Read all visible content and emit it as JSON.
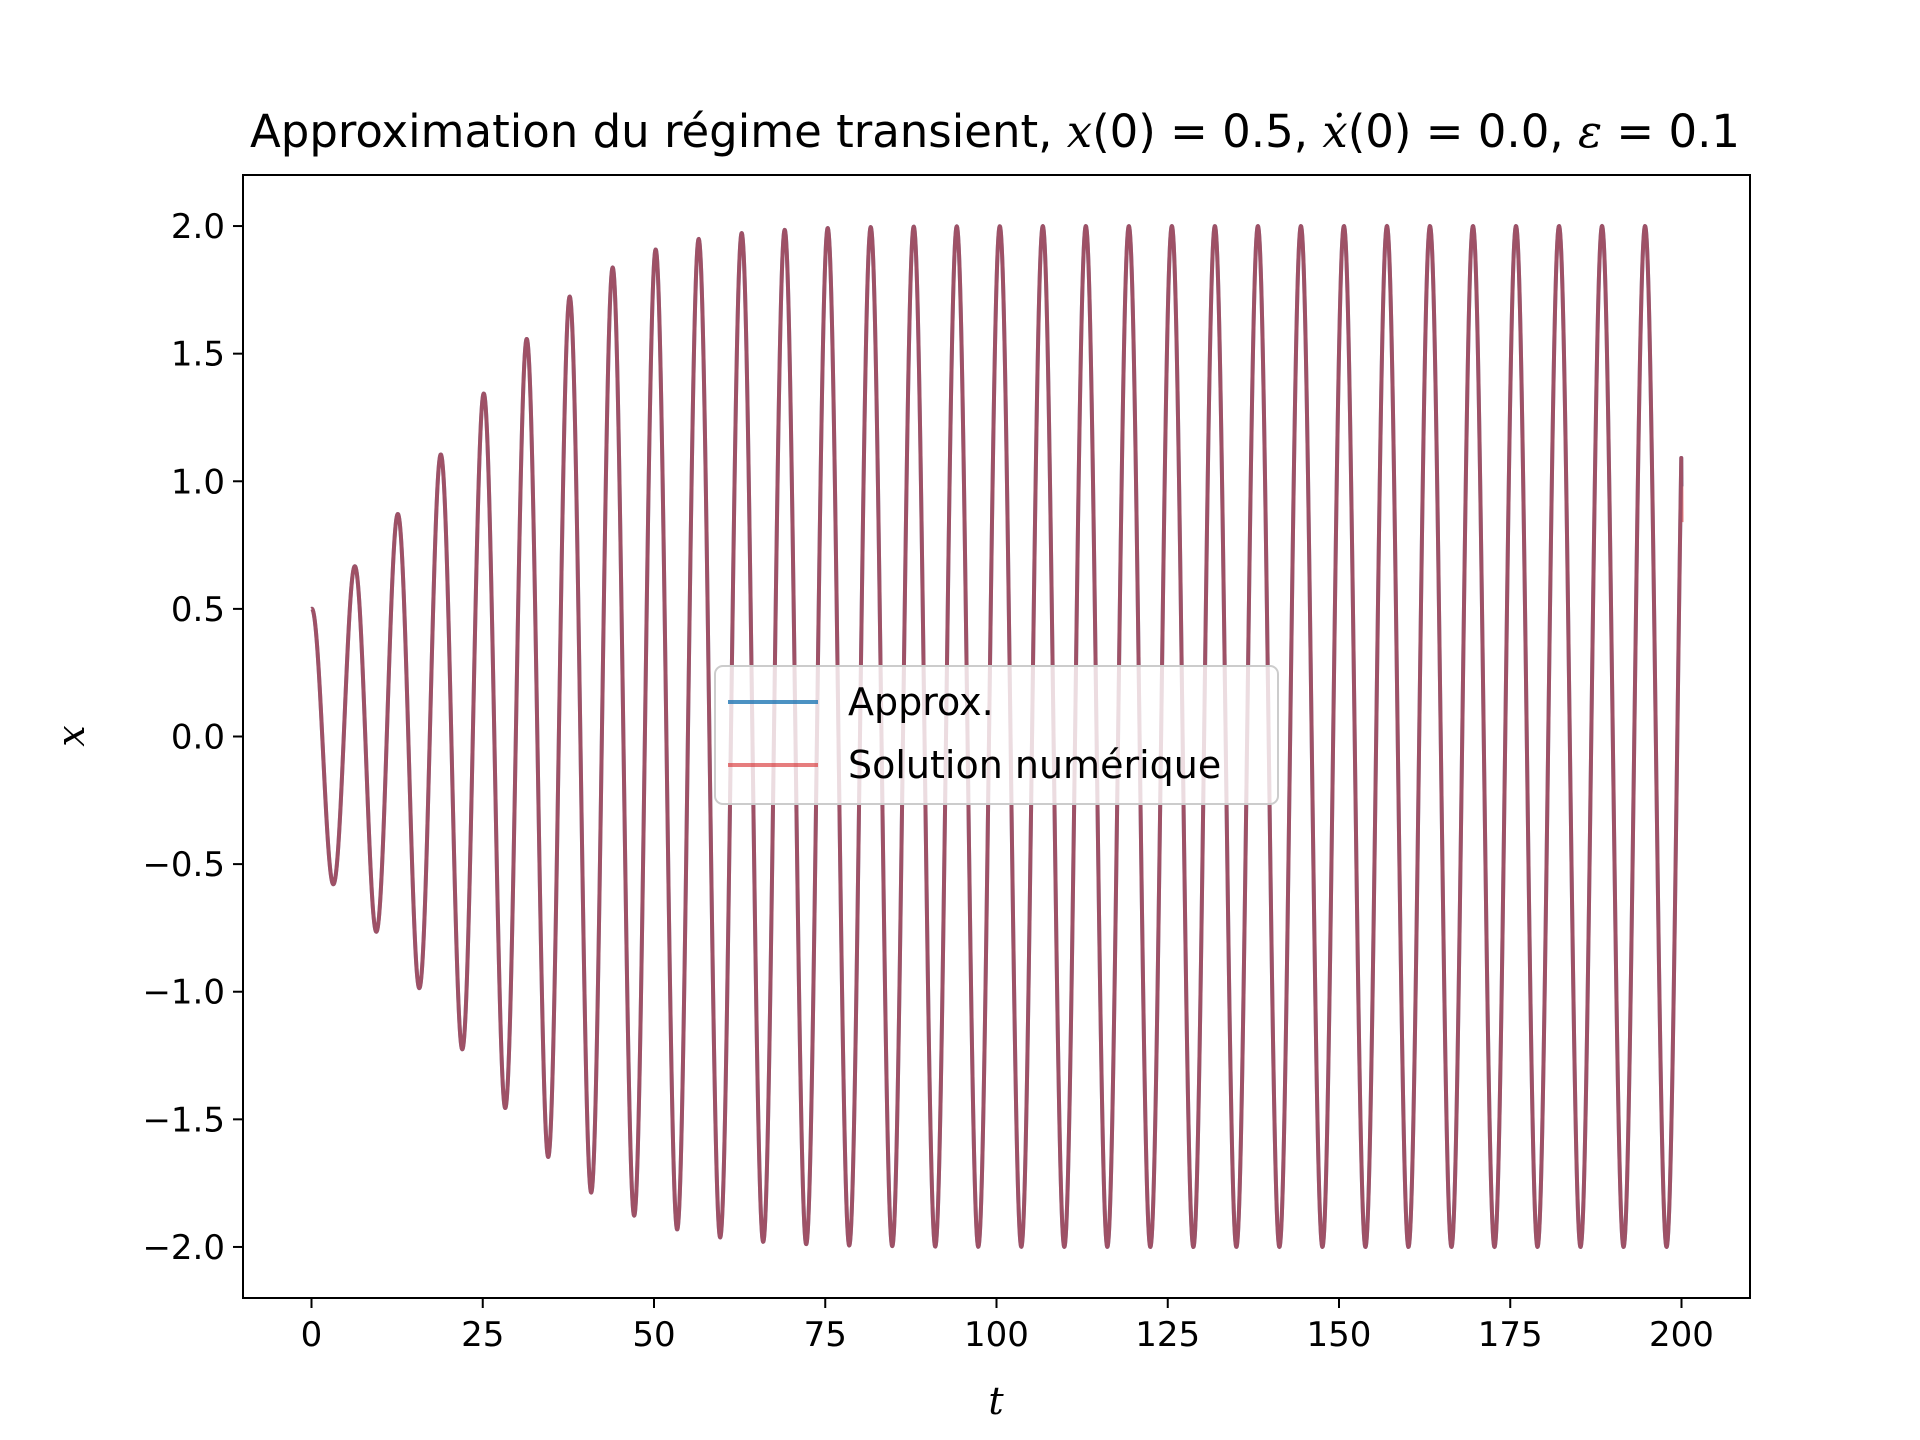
{
  "chart_data": {
    "type": "line",
    "title": "Approximation du régime transient, x(0) = 0.5, ẋ(0) = 0.0, ε = 0.1",
    "title_parts": {
      "prefix": "Approximation du régime transient, ",
      "x0_var": "x",
      "x0_rest": "(0) = 0.5, ",
      "xdot_var": "ẋ",
      "xdot_rest": "(0) = 0.0, ",
      "eps_var": "ε",
      "eps_rest": " = 0.1"
    },
    "xlabel": "t",
    "ylabel": "x",
    "xlim": [
      -10,
      210
    ],
    "ylim": [
      -2.2,
      2.2
    ],
    "xticks": [
      0,
      25,
      50,
      75,
      100,
      125,
      150,
      175,
      200
    ],
    "xtick_labels": [
      "0",
      "25",
      "50",
      "75",
      "100",
      "125",
      "150",
      "175",
      "200"
    ],
    "yticks": [
      2.0,
      1.5,
      1.0,
      0.5,
      0.0,
      -0.5,
      -1.0,
      -1.5,
      -2.0
    ],
    "ytick_labels": [
      "2.0",
      "1.5",
      "1.0",
      "0.5",
      "0.0",
      "−0.5",
      "−1.0",
      "−1.5",
      "−2.0"
    ],
    "grid": false,
    "legend_position": "center",
    "t_range": [
      0,
      200
    ],
    "initial_value": 0.5,
    "final_values": {
      "Approx.": 0.98,
      "Solution numérique": 0.84
    },
    "period": 6.28,
    "peaks": [
      {
        "t": 6.3,
        "x": 0.67
      },
      {
        "t": 12.6,
        "x": 0.87
      },
      {
        "t": 18.8,
        "x": 1.11
      },
      {
        "t": 25.1,
        "x": 1.35
      },
      {
        "t": 31.4,
        "x": 1.57
      },
      {
        "t": 37.7,
        "x": 1.73
      },
      {
        "t": 44.0,
        "x": 1.84
      },
      {
        "t": 50.3,
        "x": 1.92
      },
      {
        "t": 56.5,
        "x": 1.96
      },
      {
        "t": 62.8,
        "x": 1.99
      },
      {
        "t": 69.1,
        "x": 2.0
      },
      {
        "t": 194.8,
        "x": 2.0
      }
    ],
    "troughs": [
      {
        "t": 3.1,
        "x": -0.57
      },
      {
        "t": 9.4,
        "x": -0.76
      },
      {
        "t": 15.7,
        "x": -0.99
      },
      {
        "t": 22.0,
        "x": -1.23
      },
      {
        "t": 28.3,
        "x": -1.46
      },
      {
        "t": 34.6,
        "x": -1.65
      },
      {
        "t": 40.8,
        "x": -1.79
      },
      {
        "t": 47.1,
        "x": -1.88
      },
      {
        "t": 53.4,
        "x": -1.94
      },
      {
        "t": 59.7,
        "x": -1.97
      },
      {
        "t": 66.0,
        "x": -1.99
      },
      {
        "t": 72.3,
        "x": -2.0
      },
      {
        "t": 197.9,
        "x": -2.0
      }
    ],
    "series": [
      {
        "name": "Approx.",
        "color": "#1f77b4",
        "alpha": 0.8
      },
      {
        "name": "Solution numérique",
        "color": "#d62728",
        "alpha": 0.6
      }
    ]
  }
}
